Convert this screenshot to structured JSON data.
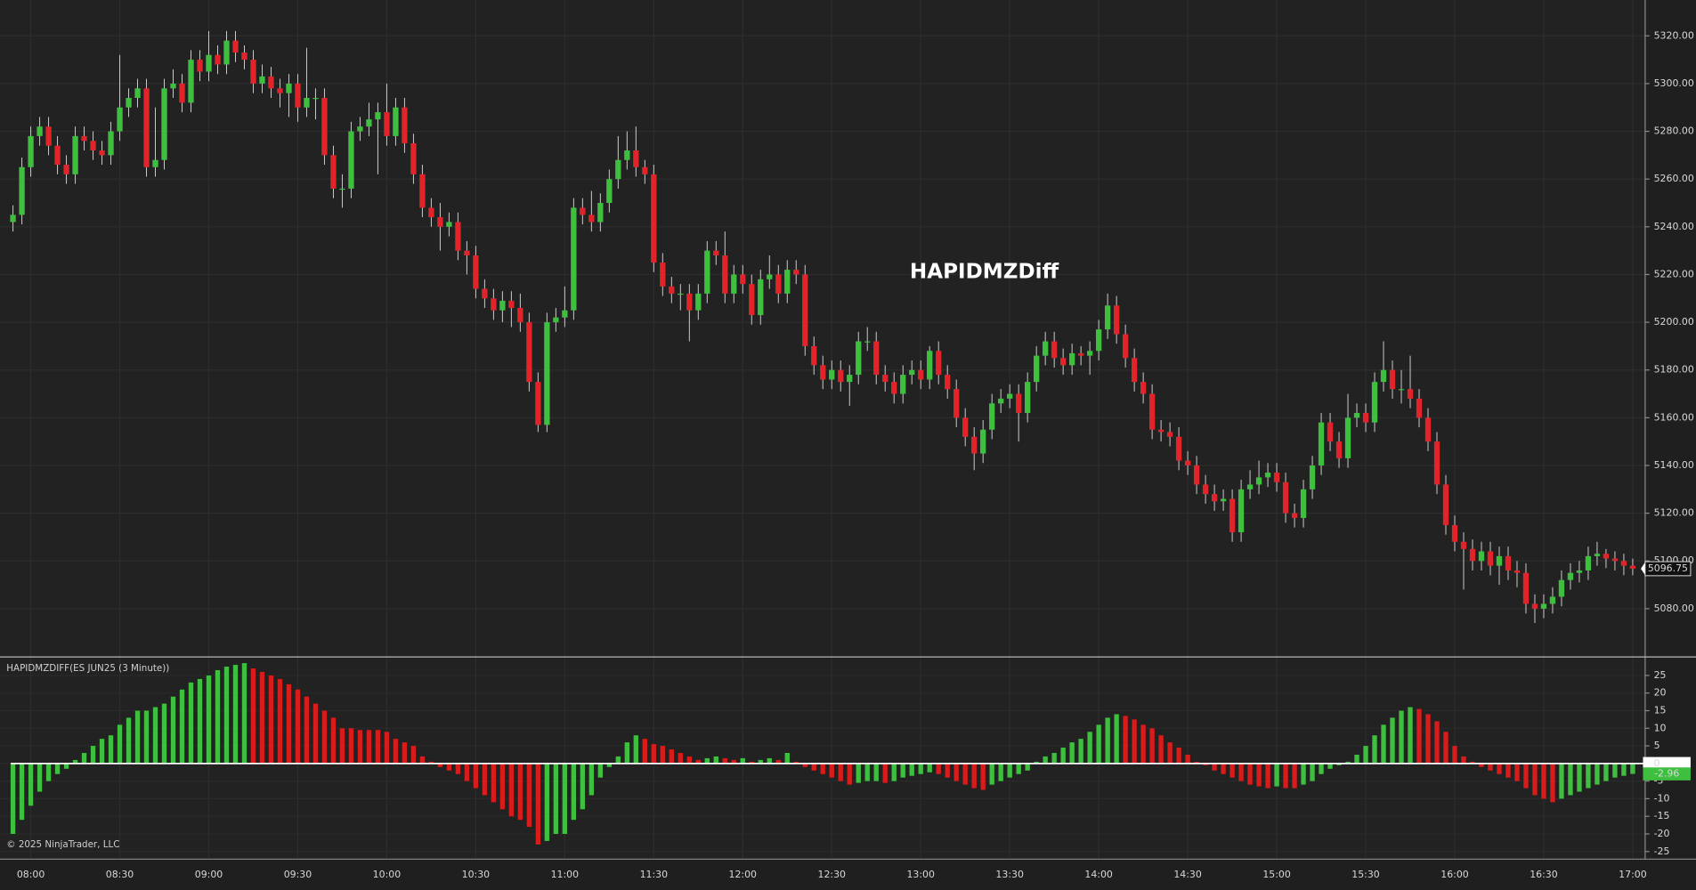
{
  "chart_data": [
    {
      "type": "candlestick",
      "title": "HAPIDMZDiff",
      "up_color": "#3fbf3f",
      "down_color": "#e0242a",
      "wick_color": "#cfcfcf",
      "grid": true,
      "ylim": [
        5060,
        5335
      ],
      "yticks": [
        {
          "value": 5320,
          "label": "5320.00"
        },
        {
          "value": 5300,
          "label": "5300.00"
        },
        {
          "value": 5280,
          "label": "5280.00"
        },
        {
          "value": 5260,
          "label": "5260.00"
        },
        {
          "value": 5240,
          "label": "5240.00"
        },
        {
          "value": 5220,
          "label": "5220.00"
        },
        {
          "value": 5200,
          "label": "5200.00"
        },
        {
          "value": 5180,
          "label": "5180.00"
        },
        {
          "value": 5160,
          "label": "5160.00"
        },
        {
          "value": 5140,
          "label": "5140.00"
        },
        {
          "value": 5120,
          "label": "5120.00"
        },
        {
          "value": 5100,
          "label": "5100.00"
        },
        {
          "value": 5080,
          "label": "5080.00"
        }
      ],
      "xticks": [
        "08:00",
        "08:30",
        "09:00",
        "09:30",
        "10:00",
        "10:30",
        "11:00",
        "11:30",
        "12:00",
        "12:30",
        "13:00",
        "13:30",
        "14:00",
        "14:30",
        "15:00",
        "15:30",
        "16:00",
        "16:30",
        "17:00"
      ],
      "x": [
        "07:54",
        "07:57",
        "08:00",
        "08:03",
        "08:06",
        "08:09",
        "08:12",
        "08:15",
        "08:18",
        "08:21",
        "08:24",
        "08:27",
        "08:30",
        "08:33",
        "08:36",
        "08:39",
        "08:42",
        "08:45",
        "08:48",
        "08:51",
        "08:54",
        "08:57",
        "09:00",
        "09:03",
        "09:06",
        "09:09",
        "09:12",
        "09:15",
        "09:18",
        "09:21",
        "09:24",
        "09:27",
        "09:30",
        "09:33",
        "09:36",
        "09:39",
        "09:42",
        "09:45",
        "09:48",
        "09:51",
        "09:54",
        "09:57",
        "10:00",
        "10:03",
        "10:06",
        "10:09",
        "10:12",
        "10:15",
        "10:18",
        "10:21",
        "10:24",
        "10:27",
        "10:30",
        "10:33",
        "10:36",
        "10:39",
        "10:42",
        "10:45",
        "10:48",
        "10:51",
        "10:54",
        "10:57",
        "11:00",
        "11:03",
        "11:06",
        "11:09",
        "11:12",
        "11:15",
        "11:18",
        "11:21",
        "11:24",
        "11:27",
        "11:30",
        "11:33",
        "11:36",
        "11:39",
        "11:42",
        "11:45",
        "11:48",
        "11:51",
        "11:54",
        "11:57",
        "12:00",
        "12:03",
        "12:06",
        "12:09",
        "12:12",
        "12:15",
        "12:18",
        "12:21",
        "12:24",
        "12:27",
        "12:30",
        "12:33",
        "12:36",
        "12:39",
        "12:42",
        "12:45",
        "12:48",
        "12:51",
        "12:54",
        "12:57",
        "13:00",
        "13:03",
        "13:06",
        "13:09",
        "13:12",
        "13:15",
        "13:18",
        "13:21",
        "13:24",
        "13:27",
        "13:30",
        "13:33",
        "13:36",
        "13:39",
        "13:42",
        "13:45",
        "13:48",
        "13:51",
        "13:54",
        "13:57",
        "14:00",
        "14:03",
        "14:06",
        "14:09",
        "14:12",
        "14:15",
        "14:18",
        "14:21",
        "14:24",
        "14:27",
        "14:30",
        "14:33",
        "14:36",
        "14:39",
        "14:42",
        "14:45",
        "14:48",
        "14:51",
        "14:54",
        "14:57",
        "15:00",
        "15:03",
        "15:06",
        "15:09",
        "15:12",
        "15:15",
        "15:18",
        "15:21",
        "15:24",
        "15:27",
        "15:30",
        "15:33",
        "15:36",
        "15:39",
        "15:42",
        "15:45",
        "15:48",
        "15:51",
        "15:54",
        "15:57",
        "16:00",
        "16:03",
        "16:06",
        "16:09",
        "16:12",
        "16:15",
        "16:18",
        "16:21",
        "16:24",
        "16:27",
        "16:30",
        "16:33",
        "16:36",
        "16:39",
        "16:42",
        "16:45",
        "16:48",
        "16:51",
        "16:54",
        "16:57",
        "17:00"
      ],
      "open": [
        5242,
        5245,
        5265,
        5278,
        5282,
        5274,
        5266,
        5262,
        5278,
        5276,
        5272,
        5270,
        5280,
        5290,
        5294,
        5298,
        5265,
        5268,
        5298,
        5300,
        5292,
        5310,
        5305,
        5312,
        5308,
        5318,
        5313,
        5310,
        5300,
        5303,
        5298,
        5296,
        5300,
        5290,
        5294,
        5294,
        5270,
        5256,
        5256,
        5280,
        5282,
        5285,
        5288,
        5278,
        5290,
        5275,
        5262,
        5248,
        5244,
        5240,
        5242,
        5230,
        5228,
        5214,
        5210,
        5205,
        5209,
        5206,
        5200,
        5175,
        5157,
        5200,
        5202,
        5205,
        5248,
        5245,
        5242,
        5250,
        5260,
        5268,
        5272,
        5265,
        5262,
        5225,
        5215,
        5212,
        5212,
        5205,
        5212,
        5230,
        5228,
        5212,
        5220,
        5216,
        5203,
        5218,
        5220,
        5212,
        5222,
        5220,
        5190,
        5182,
        5176,
        5180,
        5175,
        5178,
        5192,
        5192,
        5178,
        5175,
        5170,
        5178,
        5180,
        5176,
        5188,
        5178,
        5172,
        5160,
        5152,
        5145,
        5155,
        5166,
        5168,
        5170,
        5162,
        5175,
        5186,
        5192,
        5185,
        5182,
        5187,
        5186,
        5188,
        5197,
        5207,
        5195,
        5185,
        5175,
        5170,
        5155,
        5154,
        5152,
        5142,
        5140,
        5132,
        5128,
        5125,
        5126,
        5112,
        5130,
        5132,
        5135,
        5137,
        5133,
        5120,
        5118,
        5130,
        5140,
        5158,
        5150,
        5143,
        5160,
        5162,
        5158,
        5175,
        5180,
        5172,
        5172,
        5168,
        5160,
        5150,
        5132,
        5115,
        5108,
        5105,
        5100,
        5104,
        5098,
        5102,
        5096,
        5095,
        5082,
        5080,
        5082,
        5085,
        5092,
        5095,
        5096,
        5102,
        5103,
        5101,
        5100,
        5098
      ],
      "high": [
        5249,
        5269,
        5282,
        5286,
        5286,
        5278,
        5270,
        5282,
        5282,
        5280,
        5276,
        5284,
        5312,
        5298,
        5302,
        5302,
        5290,
        5302,
        5306,
        5304,
        5314,
        5314,
        5322,
        5316,
        5322,
        5322,
        5316,
        5314,
        5308,
        5307,
        5302,
        5304,
        5304,
        5315,
        5298,
        5298,
        5274,
        5262,
        5284,
        5286,
        5292,
        5292,
        5300,
        5294,
        5294,
        5279,
        5266,
        5252,
        5250,
        5246,
        5246,
        5234,
        5232,
        5218,
        5214,
        5213,
        5213,
        5212,
        5204,
        5179,
        5204,
        5206,
        5215,
        5252,
        5252,
        5255,
        5254,
        5264,
        5278,
        5280,
        5282,
        5268,
        5266,
        5229,
        5219,
        5216,
        5216,
        5216,
        5234,
        5234,
        5238,
        5224,
        5224,
        5220,
        5222,
        5228,
        5224,
        5226,
        5226,
        5224,
        5194,
        5186,
        5184,
        5184,
        5182,
        5196,
        5198,
        5196,
        5182,
        5179,
        5182,
        5184,
        5184,
        5190,
        5192,
        5182,
        5176,
        5164,
        5156,
        5159,
        5170,
        5172,
        5174,
        5174,
        5179,
        5190,
        5196,
        5196,
        5189,
        5191,
        5190,
        5192,
        5201,
        5212,
        5211,
        5199,
        5189,
        5179,
        5174,
        5159,
        5158,
        5156,
        5146,
        5144,
        5136,
        5132,
        5130,
        5130,
        5134,
        5138,
        5142,
        5141,
        5141,
        5137,
        5124,
        5134,
        5144,
        5162,
        5162,
        5154,
        5170,
        5166,
        5166,
        5179,
        5192,
        5184,
        5180,
        5186,
        5172,
        5164,
        5154,
        5136,
        5119,
        5112,
        5109,
        5108,
        5108,
        5106,
        5106,
        5100,
        5099,
        5086,
        5086,
        5089,
        5096,
        5099,
        5100,
        5106,
        5108,
        5105,
        5104,
        5103,
        5101
      ],
      "low": [
        5238,
        5241,
        5261,
        5274,
        5270,
        5262,
        5258,
        5258,
        5272,
        5268,
        5266,
        5266,
        5276,
        5286,
        5290,
        5261,
        5261,
        5264,
        5294,
        5288,
        5288,
        5301,
        5301,
        5304,
        5304,
        5309,
        5306,
        5296,
        5296,
        5294,
        5290,
        5286,
        5284,
        5286,
        5285,
        5266,
        5252,
        5248,
        5252,
        5276,
        5278,
        5262,
        5274,
        5274,
        5271,
        5258,
        5244,
        5240,
        5230,
        5236,
        5226,
        5220,
        5210,
        5206,
        5201,
        5200,
        5198,
        5196,
        5171,
        5154,
        5154,
        5196,
        5198,
        5201,
        5241,
        5238,
        5238,
        5246,
        5256,
        5264,
        5261,
        5258,
        5221,
        5211,
        5208,
        5205,
        5192,
        5201,
        5208,
        5224,
        5208,
        5208,
        5212,
        5199,
        5199,
        5214,
        5208,
        5208,
        5216,
        5186,
        5178,
        5172,
        5172,
        5171,
        5165,
        5174,
        5188,
        5174,
        5171,
        5166,
        5166,
        5174,
        5172,
        5172,
        5174,
        5168,
        5156,
        5148,
        5138,
        5141,
        5151,
        5162,
        5164,
        5150,
        5158,
        5171,
        5182,
        5181,
        5178,
        5178,
        5182,
        5178,
        5184,
        5193,
        5191,
        5181,
        5171,
        5166,
        5151,
        5150,
        5148,
        5138,
        5136,
        5128,
        5124,
        5121,
        5121,
        5108,
        5108,
        5126,
        5128,
        5131,
        5129,
        5116,
        5114,
        5114,
        5126,
        5136,
        5146,
        5139,
        5139,
        5156,
        5154,
        5154,
        5171,
        5168,
        5166,
        5164,
        5156,
        5146,
        5128,
        5111,
        5104,
        5088,
        5096,
        5096,
        5094,
        5090,
        5092,
        5089,
        5078,
        5074,
        5076,
        5078,
        5081,
        5088,
        5091,
        5092,
        5098,
        5097,
        5096,
        5094,
        5094
      ],
      "close": [
        5245,
        5265,
        5278,
        5282,
        5274,
        5266,
        5262,
        5278,
        5276,
        5272,
        5270,
        5280,
        5290,
        5294,
        5298,
        5265,
        5268,
        5298,
        5300,
        5292,
        5310,
        5305,
        5312,
        5308,
        5318,
        5313,
        5310,
        5300,
        5303,
        5298,
        5296,
        5300,
        5290,
        5294,
        5294,
        5270,
        5256,
        5256,
        5280,
        5282,
        5285,
        5288,
        5278,
        5290,
        5275,
        5262,
        5248,
        5244,
        5240,
        5242,
        5230,
        5228,
        5214,
        5210,
        5205,
        5209,
        5206,
        5200,
        5175,
        5157,
        5200,
        5202,
        5205,
        5248,
        5245,
        5242,
        5250,
        5260,
        5268,
        5272,
        5265,
        5262,
        5225,
        5215,
        5212,
        5212,
        5205,
        5212,
        5230,
        5228,
        5212,
        5220,
        5216,
        5203,
        5218,
        5220,
        5212,
        5222,
        5220,
        5190,
        5182,
        5176,
        5180,
        5175,
        5178,
        5192,
        5192,
        5178,
        5175,
        5170,
        5178,
        5180,
        5176,
        5188,
        5178,
        5172,
        5160,
        5152,
        5145,
        5155,
        5166,
        5168,
        5170,
        5162,
        5175,
        5186,
        5192,
        5185,
        5182,
        5187,
        5186,
        5188,
        5197,
        5207,
        5195,
        5185,
        5175,
        5170,
        5155,
        5154,
        5152,
        5142,
        5140,
        5132,
        5128,
        5125,
        5126,
        5112,
        5130,
        5132,
        5135,
        5137,
        5133,
        5120,
        5118,
        5130,
        5140,
        5158,
        5150,
        5143,
        5160,
        5162,
        5158,
        5175,
        5180,
        5172,
        5172,
        5168,
        5160,
        5150,
        5132,
        5115,
        5108,
        5105,
        5100,
        5104,
        5098,
        5102,
        5096,
        5095,
        5082,
        5080,
        5082,
        5085,
        5092,
        5095,
        5096,
        5102,
        5103,
        5101,
        5100,
        5098,
        5096.75
      ]
    },
    {
      "type": "bar",
      "title": "HAPIDMZDIFF(ES JUN25 (3 Minute))",
      "up_color": "#3fbf3f",
      "down_color": "#d81c1c",
      "grid": true,
      "ylim": [
        -26.7,
        29.8
      ],
      "yticks": [
        25,
        20,
        15,
        10,
        5,
        0,
        -5,
        -10,
        -15,
        -20,
        -25
      ],
      "values": [
        -20,
        -16,
        -12,
        -8,
        -5,
        -3,
        -1.5,
        1,
        3,
        5,
        7,
        8,
        11,
        13,
        15,
        15,
        16,
        17,
        19,
        21,
        23,
        24,
        25,
        26.5,
        27.5,
        28,
        28.5,
        27,
        26,
        25,
        24,
        22.5,
        21,
        19,
        17,
        15,
        13,
        10,
        10,
        9.5,
        9.5,
        9.5,
        9,
        7,
        6,
        5,
        2,
        0.5,
        -1,
        -2,
        -3,
        -5,
        -7,
        -9,
        -11,
        -13,
        -15,
        -16,
        -18,
        -23,
        -22,
        -20,
        -20,
        -16,
        -13,
        -9,
        -4,
        -1,
        2,
        6,
        8,
        7,
        5.5,
        5,
        4,
        3,
        2,
        1,
        1.5,
        2,
        1.5,
        1,
        1.5,
        0.5,
        1,
        1.5,
        1,
        3,
        0.5,
        -1,
        -2,
        -3,
        -4,
        -5,
        -6,
        -5.5,
        -5,
        -5,
        -5.5,
        -5,
        -4,
        -3.5,
        -3,
        -2.5,
        -3,
        -4,
        -5,
        -6,
        -7,
        -7.5,
        -6,
        -5,
        -4,
        -3,
        -2,
        0.5,
        2,
        3,
        4.5,
        6,
        7,
        9,
        11,
        13,
        14,
        13.5,
        12.5,
        11,
        10,
        8,
        6,
        4.5,
        2.5,
        0.5,
        -0.5,
        -2,
        -3,
        -4,
        -5,
        -6,
        -6.5,
        -7,
        -6.5,
        -7,
        -7,
        -6,
        -5,
        -3,
        -1.5,
        -0.5,
        0.5,
        2.5,
        5,
        8,
        11,
        13,
        15,
        16,
        15.5,
        14,
        12,
        9,
        5,
        2,
        0.5,
        -1,
        -2,
        -3,
        -4,
        -5,
        -7,
        -9,
        -10,
        -11,
        -10,
        -9,
        -8,
        -7,
        -6,
        -5,
        -4,
        -3.5,
        -2.96
      ]
    }
  ],
  "footer": "© 2025 NinjaTrader, LLC"
}
